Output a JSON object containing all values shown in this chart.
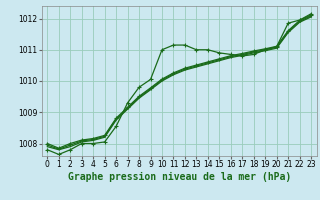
{
  "title": "Graphe pression niveau de la mer (hPa)",
  "bg_color": "#cce8f0",
  "grid_color": "#99ccbb",
  "line_color": "#1a6b1a",
  "xlim": [
    -0.5,
    23.5
  ],
  "ylim": [
    1007.6,
    1012.4
  ],
  "yticks": [
    1008,
    1009,
    1010,
    1011,
    1012
  ],
  "xticks": [
    0,
    1,
    2,
    3,
    4,
    5,
    6,
    7,
    8,
    9,
    10,
    11,
    12,
    13,
    14,
    15,
    16,
    17,
    18,
    19,
    20,
    21,
    22,
    23
  ],
  "series_wavy": [
    1007.8,
    1007.65,
    1007.8,
    1008.0,
    1008.0,
    1008.05,
    1008.55,
    1009.3,
    1009.8,
    1010.05,
    1011.0,
    1011.15,
    1011.15,
    1011.0,
    1011.0,
    1010.9,
    1010.85,
    1010.8,
    1010.85,
    1011.0,
    1011.1,
    1011.85,
    1011.95,
    1012.15
  ],
  "series_linear": [
    [
      1007.9,
      1007.8,
      1007.9,
      1008.05,
      1008.1,
      1008.2,
      1008.75,
      1009.1,
      1009.45,
      1009.72,
      1010.0,
      1010.2,
      1010.35,
      1010.45,
      1010.55,
      1010.65,
      1010.75,
      1010.82,
      1010.9,
      1010.97,
      1011.05,
      1011.55,
      1011.88,
      1012.05
    ],
    [
      1007.95,
      1007.82,
      1007.95,
      1008.08,
      1008.13,
      1008.23,
      1008.78,
      1009.13,
      1009.48,
      1009.75,
      1010.03,
      1010.23,
      1010.38,
      1010.48,
      1010.58,
      1010.68,
      1010.78,
      1010.85,
      1010.93,
      1011.0,
      1011.08,
      1011.58,
      1011.91,
      1012.08
    ],
    [
      1008.0,
      1007.85,
      1008.0,
      1008.11,
      1008.16,
      1008.26,
      1008.81,
      1009.16,
      1009.51,
      1009.78,
      1010.06,
      1010.26,
      1010.41,
      1010.51,
      1010.61,
      1010.71,
      1010.81,
      1010.88,
      1010.96,
      1011.03,
      1011.11,
      1011.61,
      1011.94,
      1012.11
    ]
  ],
  "linewidth": 0.9,
  "marker": "+",
  "marker_size": 3.5,
  "tick_fontsize": 5.5,
  "title_fontsize": 7,
  "title_fontweight": "bold"
}
